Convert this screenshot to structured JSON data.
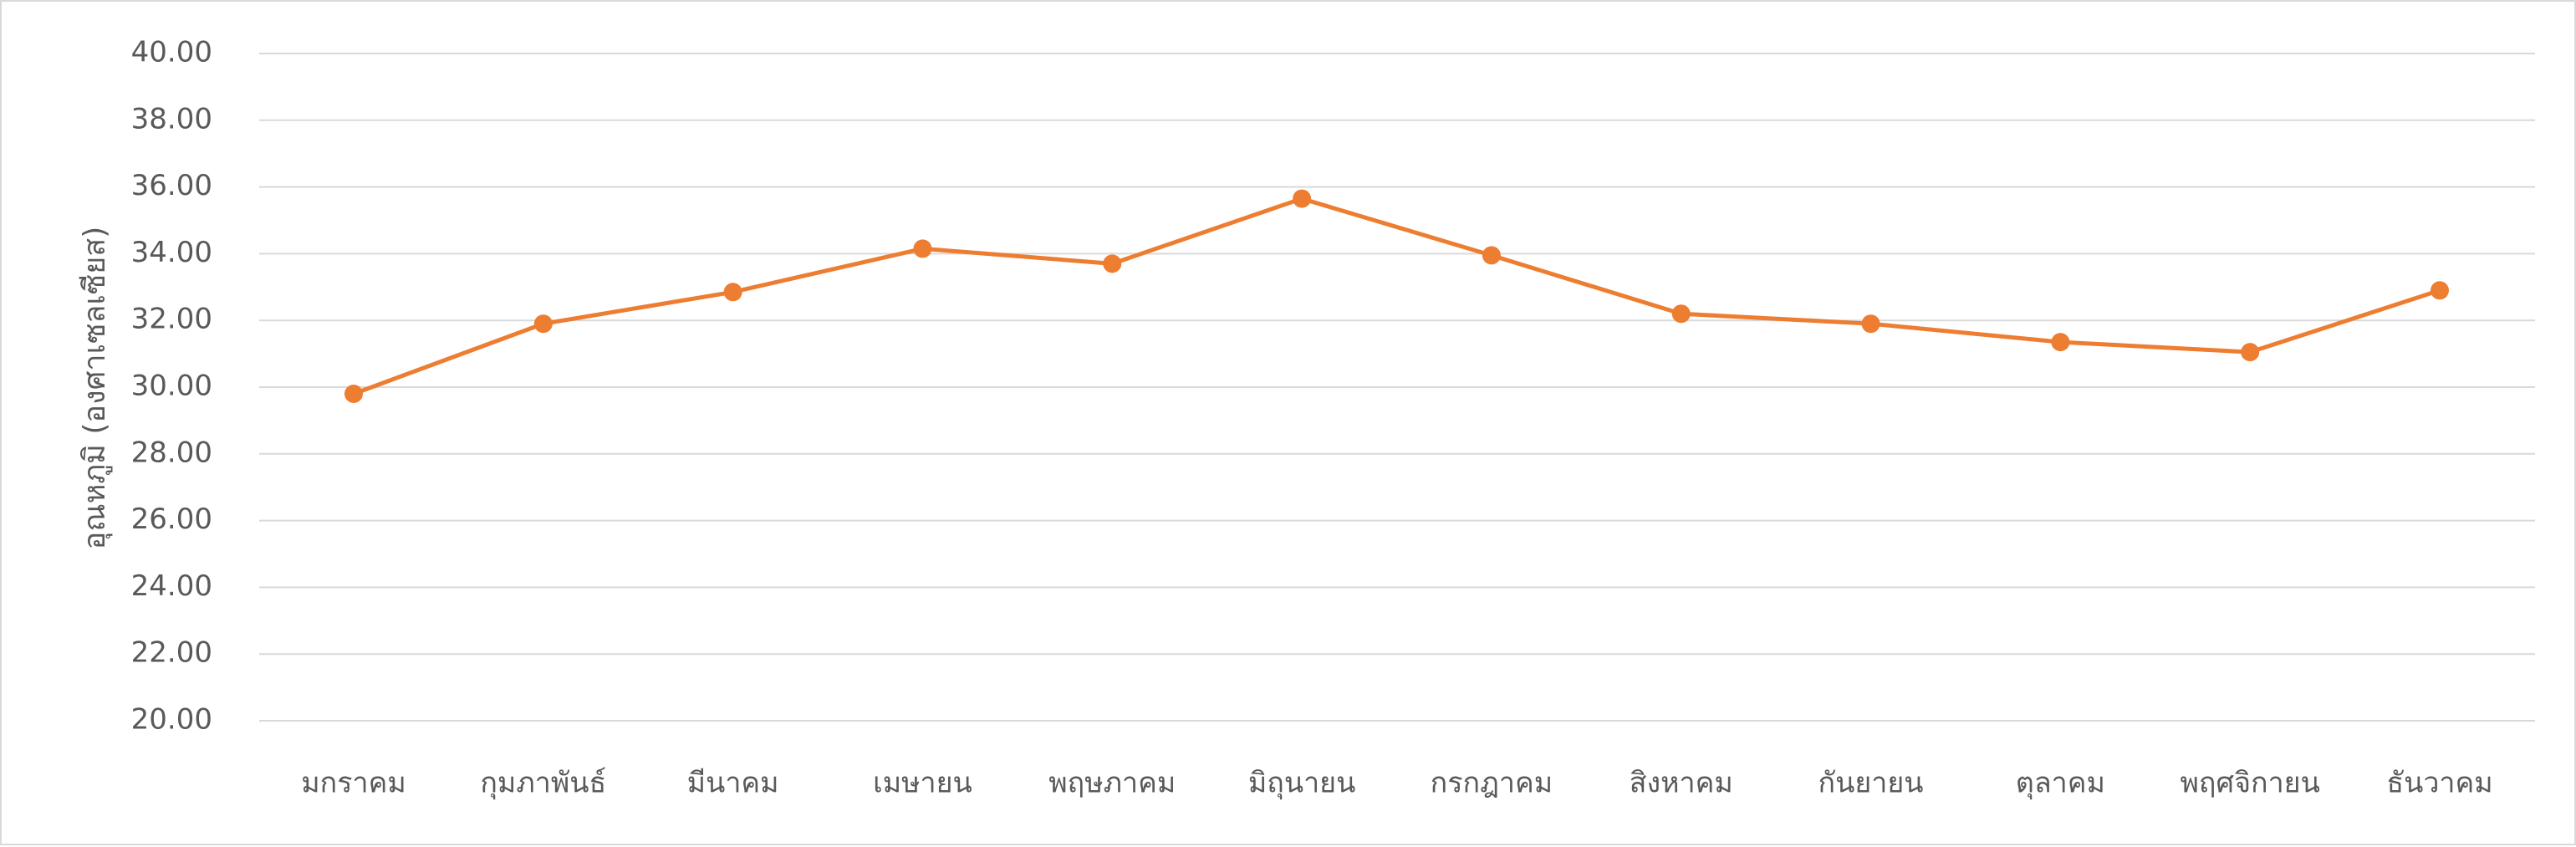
{
  "chart_data": {
    "type": "line",
    "categories": [
      "มกราคม",
      "กุมภาพันธ์",
      "มีนาคม",
      "เมษายน",
      "พฤษภาคม",
      "มิถุนายน",
      "กรกฎาคม",
      "สิงหาคม",
      "กันยายน",
      "ตุลาคม",
      "พฤศจิกายน",
      "ธันวาคม"
    ],
    "series": [
      {
        "values": [
          29.8,
          31.9,
          32.85,
          34.15,
          33.7,
          35.65,
          33.95,
          32.2,
          31.9,
          31.35,
          31.05,
          32.9
        ],
        "color": "#ED7D31"
      }
    ],
    "title": "",
    "xlabel": "",
    "ylabel": "อุณหภูมิ (องศาเซลเซียส)",
    "ylim": [
      20,
      40
    ],
    "ytick_step": 2,
    "ytick_labels": [
      "20.00",
      "22.00",
      "24.00",
      "26.00",
      "28.00",
      "30.00",
      "32.00",
      "34.00",
      "36.00",
      "38.00",
      "40.00"
    ],
    "grid": true,
    "legend": "none",
    "gridline_color": "#d9d9d9",
    "text_color": "#595959"
  }
}
